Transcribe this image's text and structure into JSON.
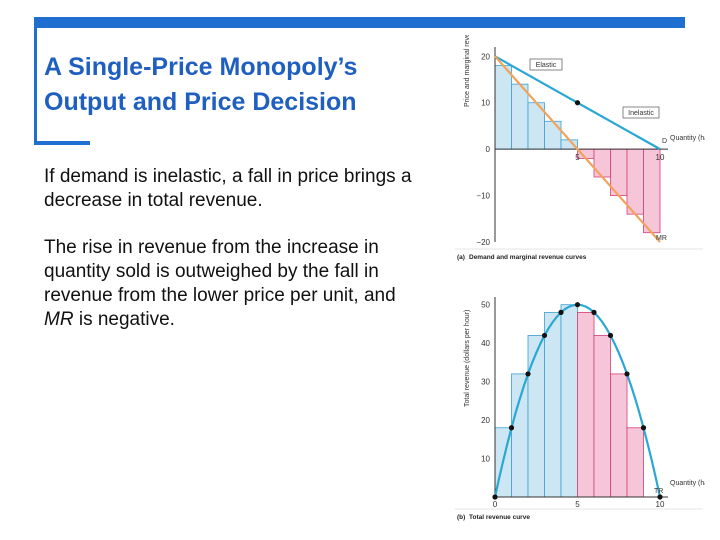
{
  "slide": {
    "title_line1": "A Single-Price Monopoly’s",
    "title_line2": "Output and Price Decision",
    "para1": "If demand is inelastic, a fall in price brings a decrease in total revenue.",
    "para2_main": "The rise in revenue from the increase in quantity sold is outweighed by the fall in revenue from the lower price per unit, and ",
    "para2_mr": "MR",
    "para2_tail": " is negative.",
    "accent_color": "#1f6fd1"
  },
  "chart_data": [
    {
      "type": "bar",
      "caption_letter": "(a)",
      "caption": "Demand and marginal revenue curves",
      "ylabel": "Price and marginal revenue (dollars per haircut)",
      "xlabel": "Quantity (haircuts per hour)",
      "y_ticks": [
        "20",
        "10",
        "0",
        "−10",
        "−20"
      ],
      "x_ticks": [
        "5",
        "10"
      ],
      "ylim": [
        -20,
        22
      ],
      "xlim": [
        0,
        10
      ],
      "demand_line": {
        "x": [
          0,
          10
        ],
        "y": [
          20,
          0
        ]
      },
      "mr_line": {
        "name": "MR",
        "x": [
          0,
          10
        ],
        "y": [
          20,
          -20
        ]
      },
      "marginal_revenue_bars": {
        "x": [
          1,
          2,
          3,
          4,
          5,
          6,
          7,
          8,
          9,
          10
        ],
        "values": [
          18,
          14,
          10,
          6,
          2,
          -2,
          -6,
          -10,
          -14,
          -18
        ]
      },
      "labels": {
        "elastic": "Elastic",
        "inelastic": "Inelastic",
        "d": "D",
        "mr": "MR"
      },
      "unit_elastic_point": {
        "x": 5,
        "y": 10
      }
    },
    {
      "type": "bar",
      "caption_letter": "(b)",
      "caption": "Total revenue curve",
      "ylabel": "Total revenue (dollars per hour)",
      "xlabel": "Quantity (haircuts per hour)",
      "y_ticks": [
        "50",
        "40",
        "30",
        "20",
        "10"
      ],
      "x_ticks": [
        "0",
        "5",
        "10"
      ],
      "ylim": [
        0,
        52
      ],
      "xlim": [
        0,
        10
      ],
      "total_revenue": {
        "name": "TR",
        "x": [
          0,
          1,
          2,
          3,
          4,
          5,
          6,
          7,
          8,
          9,
          10
        ],
        "values": [
          0,
          18,
          32,
          42,
          48,
          50,
          48,
          42,
          32,
          18,
          0
        ]
      },
      "labels": {
        "tr": "TR"
      }
    }
  ]
}
